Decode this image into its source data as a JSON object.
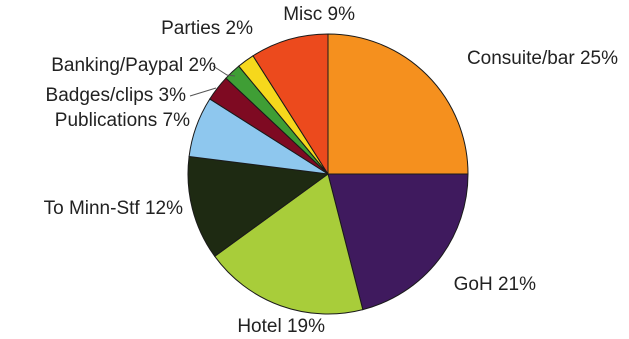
{
  "chart_data": {
    "type": "pie",
    "title": "",
    "legend": "none",
    "slices": [
      {
        "label": "Consuite/bar",
        "value": 25,
        "display": "Consuite/bar 25%",
        "color": "#f5901e"
      },
      {
        "label": "GoH",
        "value": 21,
        "display": "GoH 21%",
        "color": "#3f1a5e"
      },
      {
        "label": "Hotel",
        "value": 19,
        "display": "Hotel 19%",
        "color": "#a8cd3a"
      },
      {
        "label": "To Minn-Stf",
        "value": 12,
        "display": "To Minn-Stf 12%",
        "color": "#1e2a12"
      },
      {
        "label": "Publications",
        "value": 7,
        "display": "Publications 7%",
        "color": "#8ec7ee"
      },
      {
        "label": "Badges/clips",
        "value": 3,
        "display": "Badges/clips 3%",
        "color": "#7e0a22"
      },
      {
        "label": "Banking/Paypal",
        "value": 2,
        "display": "Banking/Paypal 2%",
        "color": "#3f9e35"
      },
      {
        "label": "Parties",
        "value": 2,
        "display": "Parties 2%",
        "color": "#f6d81c"
      },
      {
        "label": "Misc",
        "value": 9,
        "display": "Misc 9%",
        "color": "#ec4a1d"
      }
    ]
  }
}
